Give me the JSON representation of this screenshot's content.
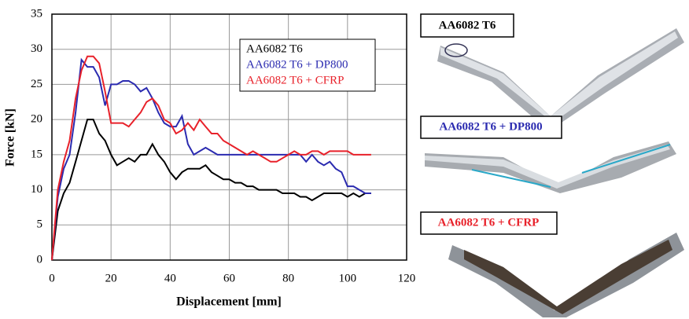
{
  "chart_data": {
    "type": "line",
    "xlabel": "Displacement [mm]",
    "ylabel": "Force [kN]",
    "x": [
      0,
      2,
      4,
      6,
      8,
      10,
      12,
      14,
      16,
      18,
      20,
      22,
      24,
      26,
      28,
      30,
      32,
      34,
      36,
      38,
      40,
      42,
      44,
      46,
      48,
      50,
      52,
      54,
      56,
      58,
      60,
      62,
      64,
      66,
      68,
      70,
      72,
      74,
      76,
      78,
      80,
      82,
      84,
      86,
      88,
      90,
      92,
      94,
      96,
      98,
      100,
      102,
      104,
      106,
      108
    ],
    "series": [
      {
        "name": "AA6082 T6",
        "color": "#000000",
        "values": [
          0,
          7,
          9.5,
          11,
          14,
          17,
          20,
          20,
          18,
          17,
          15,
          13.5,
          14,
          14.5,
          14,
          15,
          15,
          16.5,
          15,
          14,
          12.5,
          11.5,
          12.5,
          13,
          13,
          13,
          13.5,
          12.5,
          12,
          11.5,
          11.5,
          11,
          11,
          10.5,
          10.5,
          10,
          10,
          10,
          10,
          9.5,
          9.5,
          9.5,
          9,
          9,
          8.5,
          9,
          9.5,
          9.5,
          9.5,
          9.5,
          9,
          9.5,
          9,
          9.5,
          9.5
        ]
      },
      {
        "name": "AA6082 T6 + DP800",
        "color": "#2b2bb0",
        "values": [
          0,
          9,
          13,
          15,
          21,
          28.5,
          27.5,
          27.5,
          26,
          22,
          25,
          25,
          25.5,
          25.5,
          25,
          24,
          24.5,
          23,
          21,
          19.5,
          19,
          19,
          20.5,
          16.5,
          15,
          15.5,
          16,
          15.5,
          15,
          15,
          15,
          15,
          15,
          15,
          15,
          15,
          15,
          15,
          15,
          15,
          15,
          15,
          15,
          14,
          15,
          14,
          13.5,
          14,
          13,
          12.5,
          10.5,
          10.5,
          10,
          9.5,
          9.5
        ]
      },
      {
        "name": "AA6082 T6 + CFRP",
        "color": "#e8212a",
        "values": [
          0,
          10,
          14,
          17,
          23,
          27,
          29,
          29,
          28,
          24,
          19.5,
          19.5,
          19.5,
          19,
          20,
          21,
          22.5,
          23,
          22,
          20,
          19.5,
          18,
          18.5,
          19.5,
          18.5,
          20,
          19,
          18,
          18,
          17,
          16.5,
          16,
          15.5,
          15,
          15.5,
          15,
          14.5,
          14,
          14,
          14.5,
          15,
          15.5,
          15,
          15,
          15.5,
          15.5,
          15,
          15.5,
          15.5,
          15.5,
          15.5,
          15,
          15,
          15,
          15
        ]
      }
    ],
    "xlim": [
      0,
      120
    ],
    "xticks": [
      0,
      20,
      40,
      60,
      80,
      100,
      120
    ],
    "ylim": [
      0,
      35
    ],
    "yticks": [
      0,
      5,
      10,
      15,
      20,
      25,
      30,
      35
    ],
    "grid": true,
    "legend": "upper right"
  },
  "photo_labels": [
    "AA6082 T6",
    "AA6082 T6 + DP800",
    "AA6082 T6 + CFRP"
  ]
}
